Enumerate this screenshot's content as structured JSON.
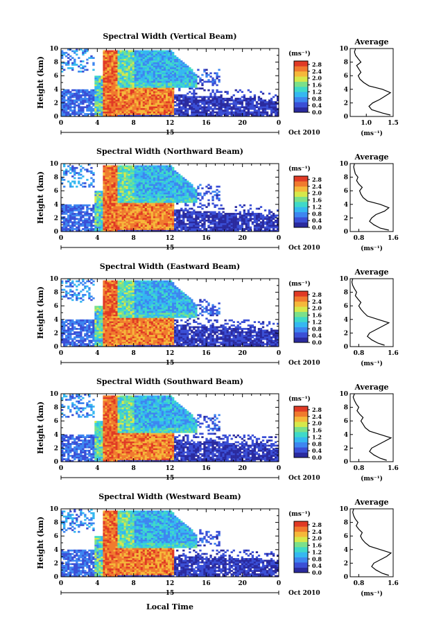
{
  "chart_data": {
    "type": "heatmap",
    "xlabel": "Local Time",
    "x_ticks": [
      "0",
      "4",
      "8",
      "12",
      "16",
      "20",
      "0"
    ],
    "x_range_hours": [
      0,
      24
    ],
    "date_marker": {
      "label": "15",
      "month_year": "Oct 2010"
    },
    "ylabel": "Height (km)",
    "y_ticks": [
      "0",
      "2",
      "4",
      "6",
      "8",
      "10"
    ],
    "ylim": [
      0,
      10
    ],
    "colorbar": {
      "unit": "(ms⁻¹)",
      "ticks": [
        "0.0",
        "0.4",
        "0.8",
        "1.2",
        "1.6",
        "2.0",
        "2.4",
        "2.8"
      ],
      "range": [
        0,
        3.0
      ],
      "colors": [
        "#2a2a9e",
        "#3a4fd6",
        "#3d86f0",
        "#35b8f0",
        "#3fd9c8",
        "#7be08a",
        "#d6e84a",
        "#f5b83a",
        "#f07a2e",
        "#e03a25"
      ]
    },
    "average_title": "Average",
    "average_unit": "(ms⁻¹)",
    "avg_height_profile_km": [
      0.2,
      0.5,
      1.0,
      1.5,
      2.0,
      2.5,
      3.0,
      3.5,
      4.0,
      4.5,
      5.0,
      5.5,
      6.0,
      6.5,
      7.0,
      7.5,
      8.0,
      8.5,
      9.0,
      9.5,
      10.0
    ],
    "panels": [
      {
        "title": "Spectral Width (Vertical Beam)",
        "avg_ticks": [
          "1.0",
          "1.5"
        ],
        "avg_xlim": [
          0.7,
          1.5
        ],
        "avg_values": [
          1.45,
          1.3,
          1.1,
          1.05,
          1.12,
          1.25,
          1.35,
          1.45,
          1.3,
          1.05,
          0.95,
          0.88,
          0.85,
          0.9,
          0.86,
          0.82,
          0.9,
          0.85,
          0.8,
          0.78,
          0.8
        ]
      },
      {
        "title": "Spectral Width (Northward Beam)",
        "avg_ticks": [
          "0.8",
          "1.6"
        ],
        "avg_xlim": [
          0.6,
          1.6
        ],
        "avg_values": [
          1.5,
          1.3,
          1.15,
          1.05,
          1.1,
          1.2,
          1.4,
          1.5,
          1.3,
          1.0,
          0.9,
          0.85,
          0.82,
          0.88,
          0.8,
          0.75,
          0.78,
          0.72,
          0.7,
          0.68,
          0.7
        ]
      },
      {
        "title": "Spectral Width (Eastward Beam)",
        "avg_ticks": [
          "0.8",
          "1.6"
        ],
        "avg_xlim": [
          0.6,
          1.6
        ],
        "avg_values": [
          1.4,
          1.25,
          1.1,
          1.0,
          1.05,
          1.2,
          1.35,
          1.5,
          1.25,
          1.0,
          0.92,
          0.85,
          0.8,
          0.85,
          0.78,
          0.72,
          0.75,
          0.7,
          0.66,
          0.64,
          0.66
        ]
      },
      {
        "title": "Spectral Width (Southward Beam)",
        "avg_ticks": [
          "0.8",
          "1.6"
        ],
        "avg_xlim": [
          0.6,
          1.6
        ],
        "avg_values": [
          1.45,
          1.3,
          1.15,
          1.05,
          1.1,
          1.25,
          1.4,
          1.55,
          1.3,
          1.05,
          0.95,
          0.9,
          0.85,
          0.9,
          0.82,
          0.76,
          0.8,
          0.74,
          0.7,
          0.67,
          0.7
        ]
      },
      {
        "title": "Spectral Width (Westward Beam)",
        "avg_ticks": [
          "0.8",
          "1.6"
        ],
        "avg_xlim": [
          0.6,
          1.6
        ],
        "avg_values": [
          1.5,
          1.35,
          1.2,
          1.1,
          1.15,
          1.3,
          1.45,
          1.55,
          1.3,
          1.05,
          0.95,
          0.88,
          0.84,
          0.88,
          0.8,
          0.74,
          0.78,
          0.72,
          0.68,
          0.66,
          0.68
        ]
      }
    ]
  }
}
